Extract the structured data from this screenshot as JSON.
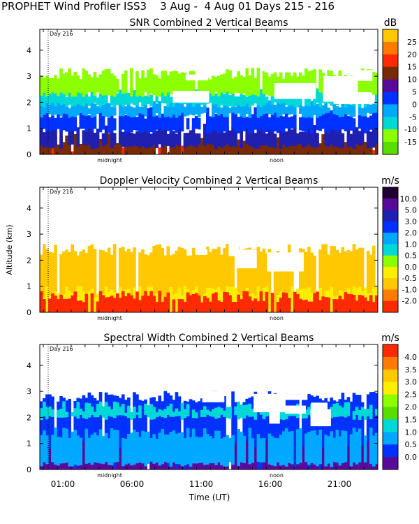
{
  "figure_title": "PROPHET Wind Profiler ISS3    3 Aug -  4 Aug 01 Days 215 - 216",
  "colors": {
    "palette": [
      "#58de00",
      "#8cff00",
      "#00d8d8",
      "#00a8ff",
      "#0032ff",
      "#2020b0",
      "#5a0a9a",
      "#7a2a00",
      "#ff2a00",
      "#ff7a00",
      "#ffc800",
      "#ffee00"
    ]
  },
  "chart_data": [
    {
      "id": "snr",
      "type": "heatmap",
      "title": "SNR Combined 2 Vertical Beams",
      "colorbar_unit": "dB",
      "colorbar_labels": [
        "25",
        "20",
        "15",
        "10",
        "5",
        "0",
        "-5",
        "-10",
        "-15"
      ],
      "colorbar_colors": [
        "#ffc800",
        "#ff7a00",
        "#ff2a00",
        "#7a2a00",
        "#5a0a9a",
        "#0032ff",
        "#00a8ff",
        "#00d8d8",
        "#8cff00",
        "#58de00"
      ],
      "ylabel": "",
      "ylim": [
        0,
        4.8
      ],
      "yticks": [
        "0",
        "1",
        "2",
        "3",
        "4"
      ],
      "x_annotations": [
        "midnight",
        "noon"
      ],
      "day_marker": "Day 216",
      "layers": [
        {
          "y0": 0.0,
          "y1": 0.2,
          "color": "#ff2a00"
        },
        {
          "y0": 0.0,
          "y1": 0.6,
          "color": "#7a2a00"
        },
        {
          "y0": 0.3,
          "y1": 1.0,
          "color": "#2020b0"
        },
        {
          "y0": 0.9,
          "y1": 1.6,
          "color": "#0032ff"
        },
        {
          "y0": 1.5,
          "y1": 2.0,
          "color": "#00a8ff"
        },
        {
          "y0": 1.9,
          "y1": 2.4,
          "color": "#00d8d8"
        },
        {
          "y0": 2.3,
          "y1": 3.1,
          "color": "#8cff00"
        }
      ]
    },
    {
      "id": "doppler",
      "type": "heatmap",
      "title": "Doppler Velocity Combined 2 Vertical Beams",
      "colorbar_unit": "m/s",
      "colorbar_labels": [
        "10.0",
        "5.0",
        "3.0",
        "2.0",
        "1.0",
        "0.5",
        "0.0",
        "-0.5",
        "-1.0",
        "-2.0"
      ],
      "colorbar_colors": [
        "#200030",
        "#5a0a9a",
        "#2020b0",
        "#0032ff",
        "#00a8ff",
        "#00d8d8",
        "#8cff00",
        "#ffee00",
        "#ffc800",
        "#ff7a00",
        "#ff2a00"
      ],
      "ylabel": "Altitude (km)",
      "ylim": [
        0,
        4.8
      ],
      "yticks": [
        "0",
        "1",
        "2",
        "3",
        "4"
      ],
      "x_annotations": [
        "midnight",
        "noon"
      ],
      "day_marker": "Day 216",
      "layers": [
        {
          "y0": 0.0,
          "y1": 2.4,
          "color": "#ffc800"
        },
        {
          "y0": 0.0,
          "y1": 0.8,
          "color": "#ffee00"
        },
        {
          "y0": 0.0,
          "y1": 0.6,
          "color": "#ff2a00"
        }
      ]
    },
    {
      "id": "width",
      "type": "heatmap",
      "title": "Spectral Width Combined 2 Vertical Beams",
      "colorbar_unit": "m/s",
      "colorbar_labels": [
        "4.0",
        "3.5",
        "3.0",
        "2.5",
        "2.0",
        "1.5",
        "1.0",
        "0.5",
        "0.0"
      ],
      "colorbar_colors": [
        "#ff2a00",
        "#ff7a00",
        "#ffc800",
        "#ffee00",
        "#8cff00",
        "#58de00",
        "#00d8d8",
        "#00a8ff",
        "#0032ff",
        "#5a0a9a"
      ],
      "ylabel": "",
      "ylim": [
        0,
        4.8
      ],
      "yticks": [
        "0",
        "1",
        "2",
        "3",
        "4"
      ],
      "x_annotations": [
        "midnight",
        "noon"
      ],
      "xticks": [
        "01:00",
        "06:00",
        "11:00",
        "16:00",
        "21:00"
      ],
      "xlabel": "Time (UT)",
      "day_marker": "Day 216",
      "layers": [
        {
          "y0": 0.0,
          "y1": 2.8,
          "color": "#0032ff"
        },
        {
          "y0": 0.0,
          "y1": 1.0,
          "color": "#5a0a9a"
        },
        {
          "y0": 0.2,
          "y1": 1.4,
          "color": "#00a8ff"
        },
        {
          "y0": 2.0,
          "y1": 2.4,
          "color": "#00d8d8"
        }
      ]
    }
  ]
}
